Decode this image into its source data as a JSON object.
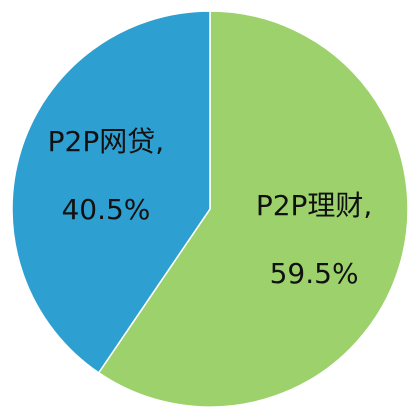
{
  "chart_data": {
    "type": "pie",
    "categories": [
      "P2P理财,",
      "P2P网贷,"
    ],
    "values": [
      59.5,
      40.5
    ],
    "value_labels": [
      "59.5%",
      "40.5%"
    ],
    "colors": [
      "#9dd16b",
      "#2e9fd1"
    ]
  }
}
